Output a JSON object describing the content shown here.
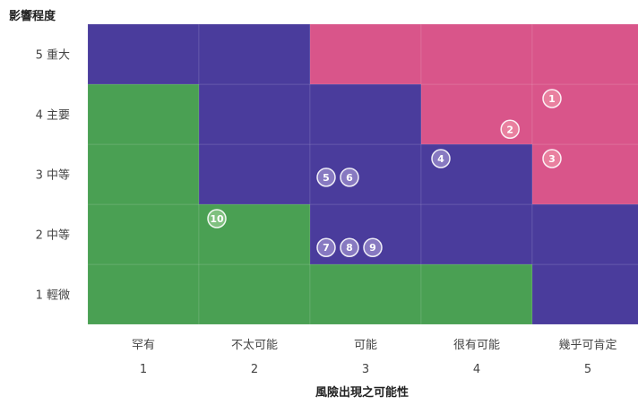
{
  "chart_data": {
    "type": "heatmap",
    "title": "",
    "ylabel": "影響程度",
    "xlabel": "風險出現之可能性",
    "x_categories": [
      {
        "label": "罕有",
        "value": "1"
      },
      {
        "label": "不太可能",
        "value": "2"
      },
      {
        "label": "可能",
        "value": "3"
      },
      {
        "label": "很有可能",
        "value": "4"
      },
      {
        "label": "幾乎可肯定",
        "value": "5"
      }
    ],
    "y_categories": [
      "1 輕微",
      "2 中等",
      "3 中等",
      "4 主要",
      "5 重大"
    ],
    "cell_levels": [
      [
        "low",
        "low",
        "low",
        "low",
        "medium"
      ],
      [
        "low",
        "low",
        "medium",
        "medium",
        "medium"
      ],
      [
        "low",
        "medium",
        "medium",
        "medium",
        "high"
      ],
      [
        "low",
        "medium",
        "medium",
        "high",
        "high"
      ],
      [
        "medium",
        "medium",
        "high",
        "high",
        "high"
      ]
    ],
    "level_colors": {
      "low": "#4aa053",
      "medium": "#4a3c9c",
      "high": "#d9558a"
    },
    "markers": [
      {
        "label": "1",
        "x": 5,
        "y": 4,
        "color": "#e9809f"
      },
      {
        "label": "2",
        "x": 4,
        "y": 4,
        "color": "#e9809f"
      },
      {
        "label": "3",
        "x": 5,
        "y": 3,
        "color": "#e9809f"
      },
      {
        "label": "4",
        "x": 4,
        "y": 3,
        "color": "#8779c1"
      },
      {
        "label": "5",
        "x": 3,
        "y": 3,
        "color": "#8779c1"
      },
      {
        "label": "6",
        "x": 3,
        "y": 3,
        "color": "#8779c1"
      },
      {
        "label": "7",
        "x": 3,
        "y": 2,
        "color": "#8779c1"
      },
      {
        "label": "8",
        "x": 3,
        "y": 2,
        "color": "#8779c1"
      },
      {
        "label": "9",
        "x": 3,
        "y": 2,
        "color": "#8779c1"
      },
      {
        "label": "10",
        "x": 2,
        "y": 2,
        "color": "#7fc07f"
      }
    ]
  }
}
